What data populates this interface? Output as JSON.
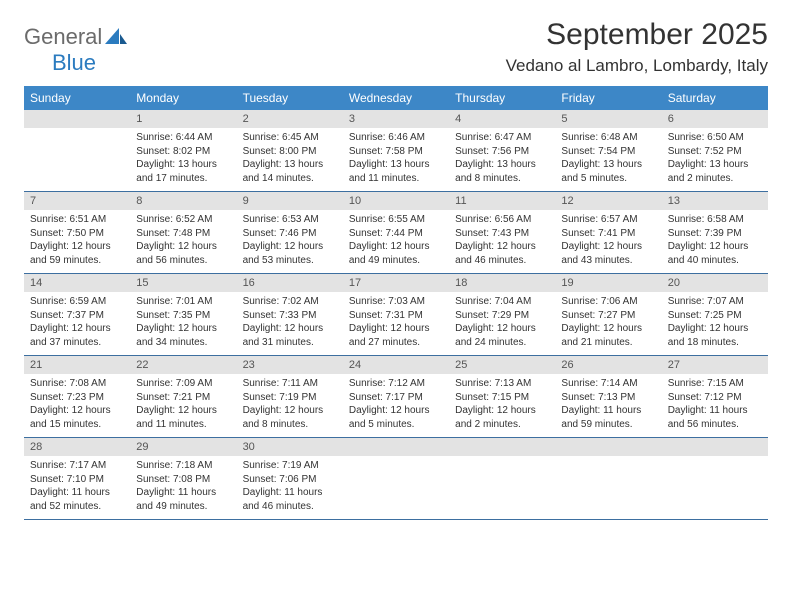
{
  "logo": {
    "text1": "General",
    "text2": "Blue"
  },
  "title": "September 2025",
  "location": "Vedano al Lambro, Lombardy, Italy",
  "colors": {
    "header_bg": "#3d87c7",
    "header_text": "#ffffff",
    "daynum_bg": "#e3e3e3",
    "daynum_text": "#555555",
    "border": "#3d6fa0",
    "body_text": "#333333",
    "logo_gray": "#6b6b6b",
    "logo_blue": "#2b7bbf"
  },
  "weekdays": [
    "Sunday",
    "Monday",
    "Tuesday",
    "Wednesday",
    "Thursday",
    "Friday",
    "Saturday"
  ],
  "weeks": [
    [
      {
        "blank": true
      },
      {
        "day": "1",
        "sunrise": "Sunrise: 6:44 AM",
        "sunset": "Sunset: 8:02 PM",
        "daylight": "Daylight: 13 hours and 17 minutes."
      },
      {
        "day": "2",
        "sunrise": "Sunrise: 6:45 AM",
        "sunset": "Sunset: 8:00 PM",
        "daylight": "Daylight: 13 hours and 14 minutes."
      },
      {
        "day": "3",
        "sunrise": "Sunrise: 6:46 AM",
        "sunset": "Sunset: 7:58 PM",
        "daylight": "Daylight: 13 hours and 11 minutes."
      },
      {
        "day": "4",
        "sunrise": "Sunrise: 6:47 AM",
        "sunset": "Sunset: 7:56 PM",
        "daylight": "Daylight: 13 hours and 8 minutes."
      },
      {
        "day": "5",
        "sunrise": "Sunrise: 6:48 AM",
        "sunset": "Sunset: 7:54 PM",
        "daylight": "Daylight: 13 hours and 5 minutes."
      },
      {
        "day": "6",
        "sunrise": "Sunrise: 6:50 AM",
        "sunset": "Sunset: 7:52 PM",
        "daylight": "Daylight: 13 hours and 2 minutes."
      }
    ],
    [
      {
        "day": "7",
        "sunrise": "Sunrise: 6:51 AM",
        "sunset": "Sunset: 7:50 PM",
        "daylight": "Daylight: 12 hours and 59 minutes."
      },
      {
        "day": "8",
        "sunrise": "Sunrise: 6:52 AM",
        "sunset": "Sunset: 7:48 PM",
        "daylight": "Daylight: 12 hours and 56 minutes."
      },
      {
        "day": "9",
        "sunrise": "Sunrise: 6:53 AM",
        "sunset": "Sunset: 7:46 PM",
        "daylight": "Daylight: 12 hours and 53 minutes."
      },
      {
        "day": "10",
        "sunrise": "Sunrise: 6:55 AM",
        "sunset": "Sunset: 7:44 PM",
        "daylight": "Daylight: 12 hours and 49 minutes."
      },
      {
        "day": "11",
        "sunrise": "Sunrise: 6:56 AM",
        "sunset": "Sunset: 7:43 PM",
        "daylight": "Daylight: 12 hours and 46 minutes."
      },
      {
        "day": "12",
        "sunrise": "Sunrise: 6:57 AM",
        "sunset": "Sunset: 7:41 PM",
        "daylight": "Daylight: 12 hours and 43 minutes."
      },
      {
        "day": "13",
        "sunrise": "Sunrise: 6:58 AM",
        "sunset": "Sunset: 7:39 PM",
        "daylight": "Daylight: 12 hours and 40 minutes."
      }
    ],
    [
      {
        "day": "14",
        "sunrise": "Sunrise: 6:59 AM",
        "sunset": "Sunset: 7:37 PM",
        "daylight": "Daylight: 12 hours and 37 minutes."
      },
      {
        "day": "15",
        "sunrise": "Sunrise: 7:01 AM",
        "sunset": "Sunset: 7:35 PM",
        "daylight": "Daylight: 12 hours and 34 minutes."
      },
      {
        "day": "16",
        "sunrise": "Sunrise: 7:02 AM",
        "sunset": "Sunset: 7:33 PM",
        "daylight": "Daylight: 12 hours and 31 minutes."
      },
      {
        "day": "17",
        "sunrise": "Sunrise: 7:03 AM",
        "sunset": "Sunset: 7:31 PM",
        "daylight": "Daylight: 12 hours and 27 minutes."
      },
      {
        "day": "18",
        "sunrise": "Sunrise: 7:04 AM",
        "sunset": "Sunset: 7:29 PM",
        "daylight": "Daylight: 12 hours and 24 minutes."
      },
      {
        "day": "19",
        "sunrise": "Sunrise: 7:06 AM",
        "sunset": "Sunset: 7:27 PM",
        "daylight": "Daylight: 12 hours and 21 minutes."
      },
      {
        "day": "20",
        "sunrise": "Sunrise: 7:07 AM",
        "sunset": "Sunset: 7:25 PM",
        "daylight": "Daylight: 12 hours and 18 minutes."
      }
    ],
    [
      {
        "day": "21",
        "sunrise": "Sunrise: 7:08 AM",
        "sunset": "Sunset: 7:23 PM",
        "daylight": "Daylight: 12 hours and 15 minutes."
      },
      {
        "day": "22",
        "sunrise": "Sunrise: 7:09 AM",
        "sunset": "Sunset: 7:21 PM",
        "daylight": "Daylight: 12 hours and 11 minutes."
      },
      {
        "day": "23",
        "sunrise": "Sunrise: 7:11 AM",
        "sunset": "Sunset: 7:19 PM",
        "daylight": "Daylight: 12 hours and 8 minutes."
      },
      {
        "day": "24",
        "sunrise": "Sunrise: 7:12 AM",
        "sunset": "Sunset: 7:17 PM",
        "daylight": "Daylight: 12 hours and 5 minutes."
      },
      {
        "day": "25",
        "sunrise": "Sunrise: 7:13 AM",
        "sunset": "Sunset: 7:15 PM",
        "daylight": "Daylight: 12 hours and 2 minutes."
      },
      {
        "day": "26",
        "sunrise": "Sunrise: 7:14 AM",
        "sunset": "Sunset: 7:13 PM",
        "daylight": "Daylight: 11 hours and 59 minutes."
      },
      {
        "day": "27",
        "sunrise": "Sunrise: 7:15 AM",
        "sunset": "Sunset: 7:12 PM",
        "daylight": "Daylight: 11 hours and 56 minutes."
      }
    ],
    [
      {
        "day": "28",
        "sunrise": "Sunrise: 7:17 AM",
        "sunset": "Sunset: 7:10 PM",
        "daylight": "Daylight: 11 hours and 52 minutes."
      },
      {
        "day": "29",
        "sunrise": "Sunrise: 7:18 AM",
        "sunset": "Sunset: 7:08 PM",
        "daylight": "Daylight: 11 hours and 49 minutes."
      },
      {
        "day": "30",
        "sunrise": "Sunrise: 7:19 AM",
        "sunset": "Sunset: 7:06 PM",
        "daylight": "Daylight: 11 hours and 46 minutes."
      },
      {
        "blank": true
      },
      {
        "blank": true
      },
      {
        "blank": true
      },
      {
        "blank": true
      }
    ]
  ]
}
